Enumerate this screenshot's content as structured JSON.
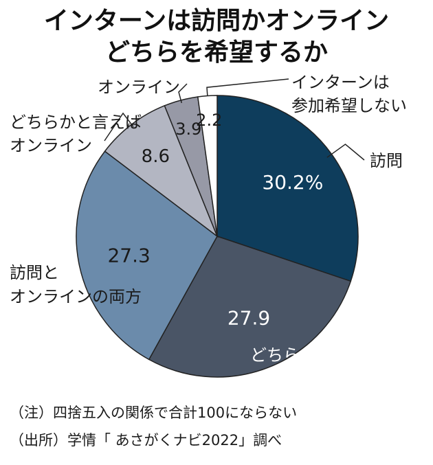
{
  "title_lines": [
    "インターンは訪問かオンライン",
    "どちらを希望するか"
  ],
  "chart_data": {
    "type": "pie",
    "title": "インターンは訪問かオンライン どちらを希望するか",
    "unit": "%",
    "start": "top, clockwise",
    "slices": [
      {
        "label": "訪問",
        "value": 30.2,
        "value_label": "30.2%",
        "color": "#0e3d5c",
        "text_color": "#ffffff"
      },
      {
        "label": "どちらかと言えば訪問",
        "value": 27.9,
        "value_label": "27.9",
        "color": "#4a5566",
        "text_color": "#ffffff"
      },
      {
        "label": "訪問とオンラインの両方",
        "value": 27.3,
        "value_label": "27.3",
        "color": "#6b8bab",
        "text_color": "#1a1a1a"
      },
      {
        "label": "どちらかと言えばオンライン",
        "value": 8.6,
        "value_label": "8.6",
        "color": "#b3b6c2",
        "text_color": "#1a1a1a"
      },
      {
        "label": "オンライン",
        "value": 3.9,
        "value_label": "3.9",
        "color": "#9799a6",
        "text_color": "#1a1a1a"
      },
      {
        "label": "インターンは参加希望しない",
        "value": 2.2,
        "value_label": "2.2",
        "color": "#ffffff",
        "text_color": "#1a1a1a"
      }
    ]
  },
  "notes": {
    "note1": "（注）四捨五入の関係で合計100にならない",
    "note2": "（出所）学情「 あさがくナビ2022」調べ"
  }
}
